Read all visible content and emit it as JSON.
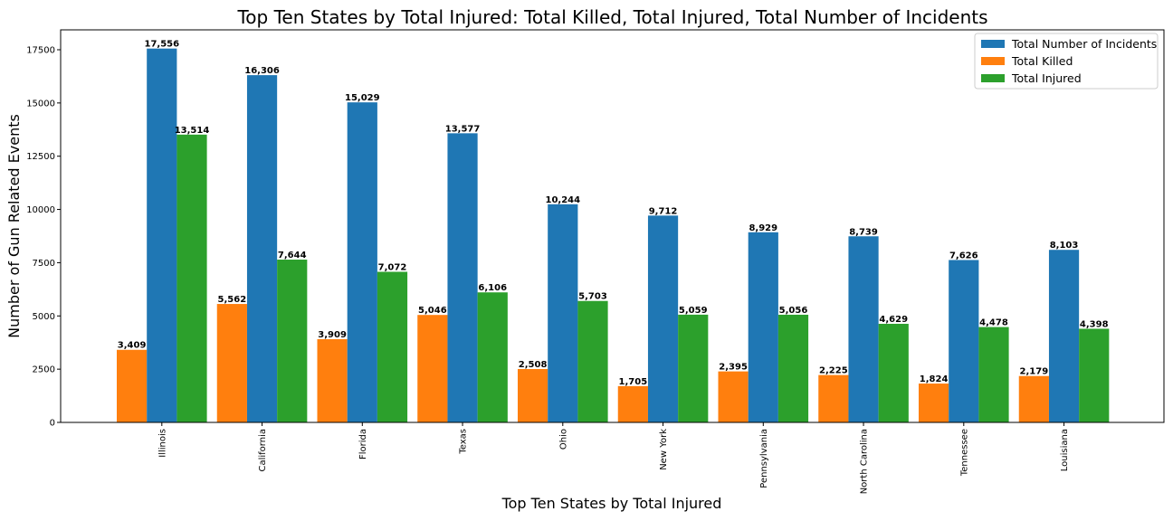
{
  "chart_data": {
    "type": "bar",
    "title": "Top Ten States by Total Injured: Total Killed, Total Injured, Total Number of Incidents",
    "xlabel": "Top Ten States by Total Injured",
    "ylabel": "Number of Gun Related Events",
    "categories": [
      "Illinois",
      "California",
      "Florida",
      "Texas",
      "Ohio",
      "New York",
      "Pennsylvania",
      "North Carolina",
      "Tennessee",
      "Louisiana"
    ],
    "series": [
      {
        "name": "Total Killed",
        "color": "#ff7f0e",
        "values": [
          3409,
          5562,
          3909,
          5046,
          2508,
          1705,
          2395,
          2225,
          1824,
          2179
        ],
        "labels": [
          "3,409",
          "5,562",
          "3,909",
          "5,046",
          "2,508",
          "1,705",
          "2,395",
          "2,225",
          "1,824",
          "2,179"
        ]
      },
      {
        "name": "Total Number of Incidents",
        "color": "#1f77b4",
        "values": [
          17556,
          16306,
          15029,
          13577,
          10244,
          9712,
          8929,
          8739,
          7626,
          8103
        ],
        "labels": [
          "17,556",
          "16,306",
          "15,029",
          "13,577",
          "10,244",
          "9,712",
          "8,929",
          "8,739",
          "7,626",
          "8,103"
        ]
      },
      {
        "name": "Total Injured",
        "color": "#2ca02c",
        "values": [
          13514,
          7644,
          7072,
          6106,
          5703,
          5059,
          5056,
          4629,
          4478,
          4398
        ],
        "labels": [
          "13,514",
          "7,644",
          "7,072",
          "6,106",
          "5,703",
          "5,059",
          "5,056",
          "4,629",
          "4,478",
          "4,398"
        ]
      }
    ],
    "yticks": [
      0,
      2500,
      5000,
      7500,
      10000,
      12500,
      15000,
      17500
    ],
    "yticklabels": [
      "0",
      "2500",
      "5000",
      "7500",
      "10000",
      "12500",
      "15000",
      "17500"
    ],
    "ylim": [
      0,
      18433.8
    ],
    "legend": {
      "position": "top-right",
      "order": [
        "Total Number of Incidents",
        "Total Killed",
        "Total Injured"
      ]
    },
    "grid": false
  }
}
